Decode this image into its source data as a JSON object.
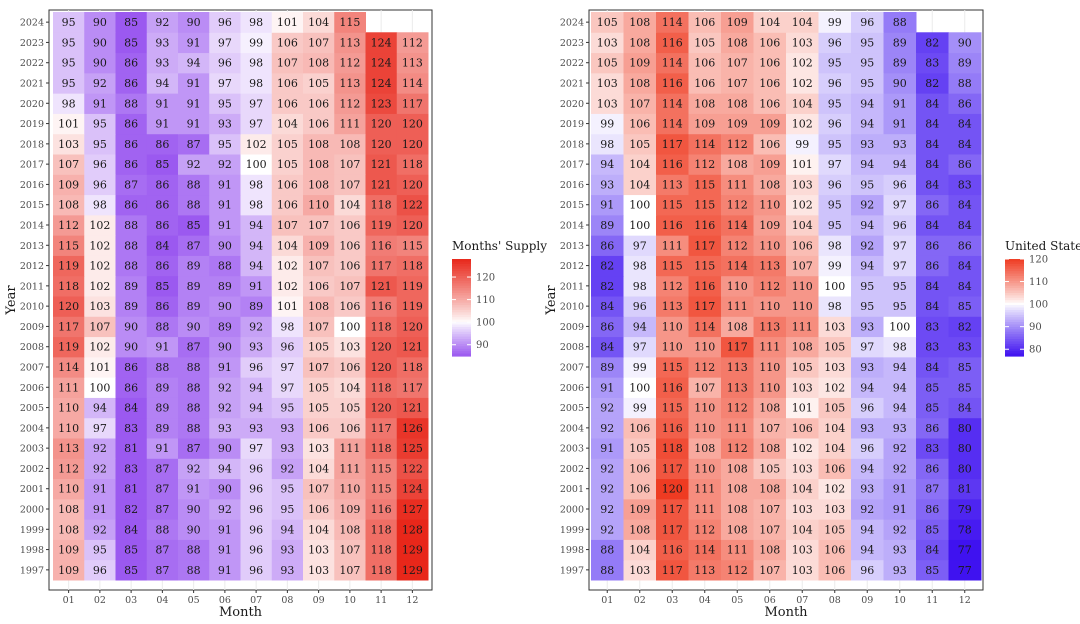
{
  "chart_data": [
    {
      "type": "heatmap",
      "xlabel": "Month",
      "ylabel": "Year",
      "legend_title": "Months' Supply",
      "legend_ticks": [
        90,
        100,
        110,
        120
      ],
      "color_scale": {
        "low": "#9b59f0",
        "mid": "#ffffff",
        "high": "#e8271a",
        "min": 85,
        "midpoint": 100,
        "max": 128
      },
      "x_categories": [
        "01",
        "02",
        "03",
        "04",
        "05",
        "06",
        "07",
        "08",
        "09",
        "10",
        "11",
        "12"
      ],
      "y_categories": [
        "1997",
        "1998",
        "1999",
        "2000",
        "2001",
        "2002",
        "2003",
        "2004",
        "2005",
        "2006",
        "2007",
        "2008",
        "2009",
        "2010",
        "2011",
        "2012",
        "2013",
        "2014",
        "2015",
        "2016",
        "2017",
        "2018",
        "2019",
        "2020",
        "2021",
        "2022",
        "2023",
        "2024"
      ],
      "values": [
        [
          109,
          96,
          85,
          87,
          88,
          91,
          96,
          93,
          103,
          107,
          118,
          129
        ],
        [
          109,
          95,
          85,
          87,
          88,
          91,
          96,
          93,
          103,
          107,
          118,
          129
        ],
        [
          108,
          92,
          84,
          88,
          90,
          91,
          96,
          94,
          104,
          108,
          118,
          128
        ],
        [
          108,
          91,
          82,
          87,
          90,
          92,
          96,
          95,
          106,
          109,
          116,
          127
        ],
        [
          110,
          91,
          81,
          87,
          91,
          90,
          96,
          95,
          107,
          110,
          115,
          124
        ],
        [
          112,
          92,
          83,
          87,
          92,
          94,
          96,
          92,
          104,
          111,
          115,
          122
        ],
        [
          113,
          92,
          81,
          91,
          87,
          90,
          97,
          93,
          103,
          111,
          118,
          125
        ],
        [
          110,
          97,
          83,
          89,
          88,
          93,
          93,
          93,
          106,
          106,
          117,
          126
        ],
        [
          110,
          94,
          84,
          89,
          88,
          92,
          94,
          95,
          105,
          105,
          120,
          121
        ],
        [
          111,
          100,
          86,
          89,
          88,
          92,
          94,
          97,
          105,
          104,
          118,
          117
        ],
        [
          114,
          101,
          86,
          88,
          88,
          91,
          96,
          97,
          107,
          106,
          120,
          118
        ],
        [
          119,
          102,
          90,
          91,
          87,
          90,
          93,
          96,
          105,
          103,
          120,
          121
        ],
        [
          117,
          107,
          90,
          88,
          90,
          89,
          92,
          98,
          107,
          100,
          118,
          120
        ],
        [
          120,
          103,
          89,
          86,
          89,
          90,
          89,
          101,
          108,
          106,
          116,
          119
        ],
        [
          118,
          102,
          89,
          85,
          89,
          89,
          91,
          102,
          106,
          107,
          121,
          119
        ],
        [
          119,
          102,
          88,
          86,
          89,
          88,
          94,
          102,
          107,
          106,
          117,
          118
        ],
        [
          115,
          102,
          88,
          84,
          87,
          90,
          94,
          104,
          109,
          106,
          116,
          115
        ],
        [
          112,
          102,
          88,
          86,
          85,
          91,
          94,
          107,
          107,
          106,
          119,
          120
        ],
        [
          108,
          98,
          86,
          86,
          88,
          91,
          98,
          106,
          110,
          104,
          118,
          122
        ],
        [
          109,
          96,
          87,
          86,
          88,
          91,
          98,
          106,
          108,
          107,
          121,
          120
        ],
        [
          107,
          96,
          86,
          85,
          92,
          92,
          100,
          105,
          108,
          107,
          121,
          118
        ],
        [
          103,
          95,
          86,
          86,
          87,
          95,
          102,
          105,
          108,
          108,
          120,
          120
        ],
        [
          101,
          95,
          86,
          91,
          91,
          93,
          97,
          104,
          106,
          111,
          120,
          120
        ],
        [
          98,
          91,
          88,
          91,
          91,
          95,
          97,
          106,
          106,
          112,
          123,
          117
        ],
        [
          95,
          92,
          86,
          94,
          91,
          97,
          98,
          106,
          105,
          113,
          124,
          114
        ],
        [
          95,
          90,
          86,
          93,
          94,
          96,
          98,
          107,
          108,
          112,
          124,
          113
        ],
        [
          95,
          90,
          85,
          93,
          91,
          97,
          99,
          106,
          107,
          113,
          124,
          112
        ],
        [
          95,
          90,
          85,
          92,
          90,
          96,
          98,
          101,
          104,
          115,
          null,
          null
        ]
      ]
    },
    {
      "type": "heatmap",
      "xlabel": "Month",
      "ylabel": "Year",
      "legend_title": "United States",
      "legend_ticks": [
        80,
        90,
        100,
        110,
        120
      ],
      "color_scale": {
        "low": "#3f12f0",
        "mid": "#ffffff",
        "high": "#ef3b22",
        "min": 77,
        "midpoint": 100,
        "max": 120
      },
      "x_categories": [
        "01",
        "02",
        "03",
        "04",
        "05",
        "06",
        "07",
        "08",
        "09",
        "10",
        "11",
        "12"
      ],
      "y_categories": [
        "1997",
        "1998",
        "1999",
        "2000",
        "2001",
        "2002",
        "2003",
        "2004",
        "2005",
        "2006",
        "2007",
        "2008",
        "2009",
        "2010",
        "2011",
        "2012",
        "2013",
        "2014",
        "2015",
        "2016",
        "2017",
        "2018",
        "2019",
        "2020",
        "2021",
        "2022",
        "2023",
        "2024"
      ],
      "values": [
        [
          88,
          103,
          117,
          113,
          112,
          107,
          103,
          106,
          96,
          93,
          85,
          77
        ],
        [
          88,
          104,
          116,
          114,
          111,
          108,
          103,
          106,
          94,
          93,
          84,
          77
        ],
        [
          92,
          108,
          117,
          112,
          108,
          107,
          104,
          105,
          94,
          92,
          85,
          78
        ],
        [
          92,
          109,
          117,
          111,
          108,
          107,
          103,
          103,
          92,
          91,
          86,
          79
        ],
        [
          92,
          106,
          120,
          111,
          108,
          108,
          104,
          102,
          93,
          91,
          87,
          81
        ],
        [
          92,
          106,
          117,
          110,
          108,
          105,
          103,
          106,
          94,
          92,
          86,
          80
        ],
        [
          91,
          105,
          118,
          108,
          112,
          108,
          102,
          104,
          96,
          92,
          83,
          80
        ],
        [
          92,
          106,
          116,
          110,
          111,
          107,
          106,
          104,
          93,
          93,
          86,
          80
        ],
        [
          92,
          99,
          115,
          110,
          112,
          108,
          101,
          105,
          96,
          94,
          85,
          84
        ],
        [
          91,
          100,
          116,
          107,
          113,
          110,
          103,
          102,
          94,
          94,
          85,
          85
        ],
        [
          89,
          99,
          115,
          112,
          113,
          110,
          105,
          103,
          93,
          94,
          84,
          85
        ],
        [
          84,
          97,
          110,
          110,
          117,
          111,
          108,
          105,
          97,
          98,
          83,
          83
        ],
        [
          86,
          94,
          110,
          114,
          108,
          113,
          111,
          103,
          93,
          100,
          83,
          82
        ],
        [
          84,
          96,
          113,
          117,
          111,
          110,
          110,
          98,
          95,
          95,
          84,
          85
        ],
        [
          82,
          98,
          112,
          116,
          110,
          112,
          110,
          100,
          95,
          95,
          84,
          84
        ],
        [
          82,
          98,
          115,
          115,
          114,
          113,
          107,
          99,
          94,
          97,
          86,
          84
        ],
        [
          86,
          97,
          111,
          117,
          112,
          110,
          106,
          98,
          92,
          97,
          86,
          86
        ],
        [
          89,
          100,
          116,
          116,
          114,
          109,
          104,
          95,
          94,
          96,
          84,
          84
        ],
        [
          91,
          100,
          115,
          115,
          112,
          110,
          102,
          95,
          92,
          97,
          86,
          84
        ],
        [
          93,
          104,
          113,
          115,
          111,
          108,
          103,
          96,
          95,
          96,
          84,
          83
        ],
        [
          94,
          104,
          116,
          112,
          108,
          109,
          101,
          97,
          94,
          94,
          84,
          86
        ],
        [
          98,
          105,
          117,
          114,
          112,
          106,
          99,
          95,
          93,
          93,
          84,
          84
        ],
        [
          99,
          106,
          114,
          109,
          109,
          109,
          102,
          96,
          94,
          91,
          84,
          84
        ],
        [
          103,
          107,
          114,
          108,
          108,
          106,
          104,
          95,
          94,
          91,
          84,
          86
        ],
        [
          103,
          108,
          116,
          106,
          107,
          106,
          102,
          96,
          95,
          90,
          82,
          88
        ],
        [
          105,
          109,
          114,
          106,
          107,
          106,
          102,
          95,
          95,
          89,
          83,
          89
        ],
        [
          103,
          108,
          116,
          105,
          108,
          106,
          103,
          96,
          95,
          89,
          82,
          90
        ],
        [
          105,
          108,
          114,
          106,
          109,
          104,
          104,
          99,
          96,
          88,
          null,
          null
        ]
      ]
    }
  ]
}
